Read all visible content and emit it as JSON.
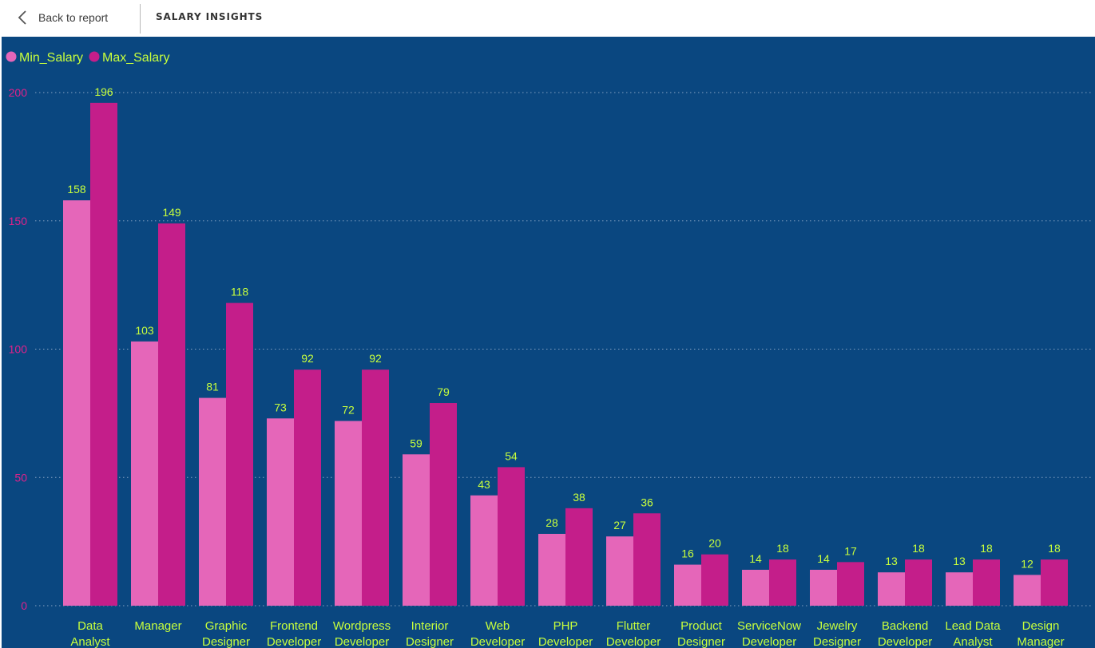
{
  "header": {
    "back_label": "Back to report",
    "title": "SALARY INSIGHTS"
  },
  "colors": {
    "background": "#0a4780",
    "min_salary": "#e566b9",
    "max_salary": "#c41e8a",
    "label_text": "#c8ff3c",
    "tick_text": "#e0218a",
    "gridline": "#8fa9c9"
  },
  "chart_data": {
    "type": "bar",
    "legend_position": "top-left",
    "grid": true,
    "ylim": [
      0,
      200
    ],
    "yticks": [
      0,
      50,
      100,
      150,
      200
    ],
    "categories": [
      [
        "Data",
        "Analyst"
      ],
      [
        "Manager"
      ],
      [
        "Graphic",
        "Designer"
      ],
      [
        "Frontend",
        "Developer"
      ],
      [
        "Wordpress",
        "Developer"
      ],
      [
        "Interior",
        "Designer"
      ],
      [
        "Web",
        "Developer"
      ],
      [
        "PHP",
        "Developer"
      ],
      [
        "Flutter",
        "Developer"
      ],
      [
        "Product",
        "Designer"
      ],
      [
        "ServiceNow",
        "Developer"
      ],
      [
        "Jewelry",
        "Designer"
      ],
      [
        "Backend",
        "Developer"
      ],
      [
        "Lead Data",
        "Analyst"
      ],
      [
        "Design",
        "Manager"
      ]
    ],
    "series": [
      {
        "name": "Min_Salary",
        "values": [
          158,
          103,
          81,
          73,
          72,
          59,
          43,
          28,
          27,
          16,
          14,
          14,
          13,
          13,
          12
        ]
      },
      {
        "name": "Max_Salary",
        "values": [
          196,
          149,
          118,
          92,
          92,
          79,
          54,
          38,
          36,
          20,
          18,
          17,
          18,
          18,
          18
        ]
      }
    ]
  }
}
